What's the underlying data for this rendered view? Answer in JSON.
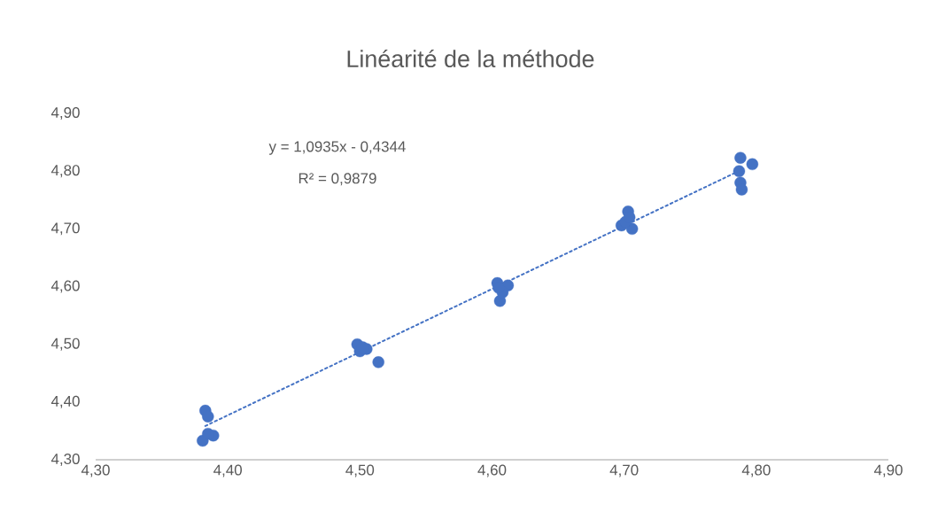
{
  "chart_data": {
    "type": "scatter",
    "title": "Linéarité de la méthode",
    "annotations": [
      "y = 1,0935x - 0,4344",
      "R² = 0,9879"
    ],
    "xlim": [
      4.3,
      4.9
    ],
    "ylim": [
      4.3,
      4.9
    ],
    "xticks": [
      {
        "value": 4.3,
        "label": "4,30"
      },
      {
        "value": 4.4,
        "label": "4,40"
      },
      {
        "value": 4.5,
        "label": "4,50"
      },
      {
        "value": 4.6,
        "label": "4,60"
      },
      {
        "value": 4.7,
        "label": "4,70"
      },
      {
        "value": 4.8,
        "label": "4,80"
      },
      {
        "value": 4.9,
        "label": "4,90"
      }
    ],
    "yticks": [
      {
        "value": 4.3,
        "label": "4,30"
      },
      {
        "value": 4.4,
        "label": "4,40"
      },
      {
        "value": 4.5,
        "label": "4,50"
      },
      {
        "value": 4.6,
        "label": "4,60"
      },
      {
        "value": 4.7,
        "label": "4,70"
      },
      {
        "value": 4.8,
        "label": "4,80"
      },
      {
        "value": 4.9,
        "label": "4,90"
      }
    ],
    "series": [
      {
        "marker": "circle",
        "color": "#4472c4",
        "x": [
          4.383,
          4.385,
          4.381,
          4.389,
          4.385,
          4.498,
          4.505,
          4.5,
          4.502,
          4.514,
          4.604,
          4.612,
          4.606,
          4.608,
          4.605,
          4.703,
          4.698,
          4.706,
          4.701,
          4.704,
          4.788,
          4.797,
          4.787,
          4.788,
          4.789
        ],
        "values": [
          4.385,
          4.375,
          4.333,
          4.342,
          4.345,
          4.5,
          4.492,
          4.488,
          4.495,
          4.469,
          4.606,
          4.602,
          4.575,
          4.59,
          4.598,
          4.73,
          4.706,
          4.7,
          4.712,
          4.72,
          4.823,
          4.812,
          4.8,
          4.78,
          4.768
        ]
      },
      {
        "type": "line",
        "line_style": "dotted",
        "marker": "none",
        "color": "#4472c4",
        "x": [
          4.383,
          4.789
        ],
        "values": [
          4.3585,
          4.8025
        ]
      }
    ]
  }
}
